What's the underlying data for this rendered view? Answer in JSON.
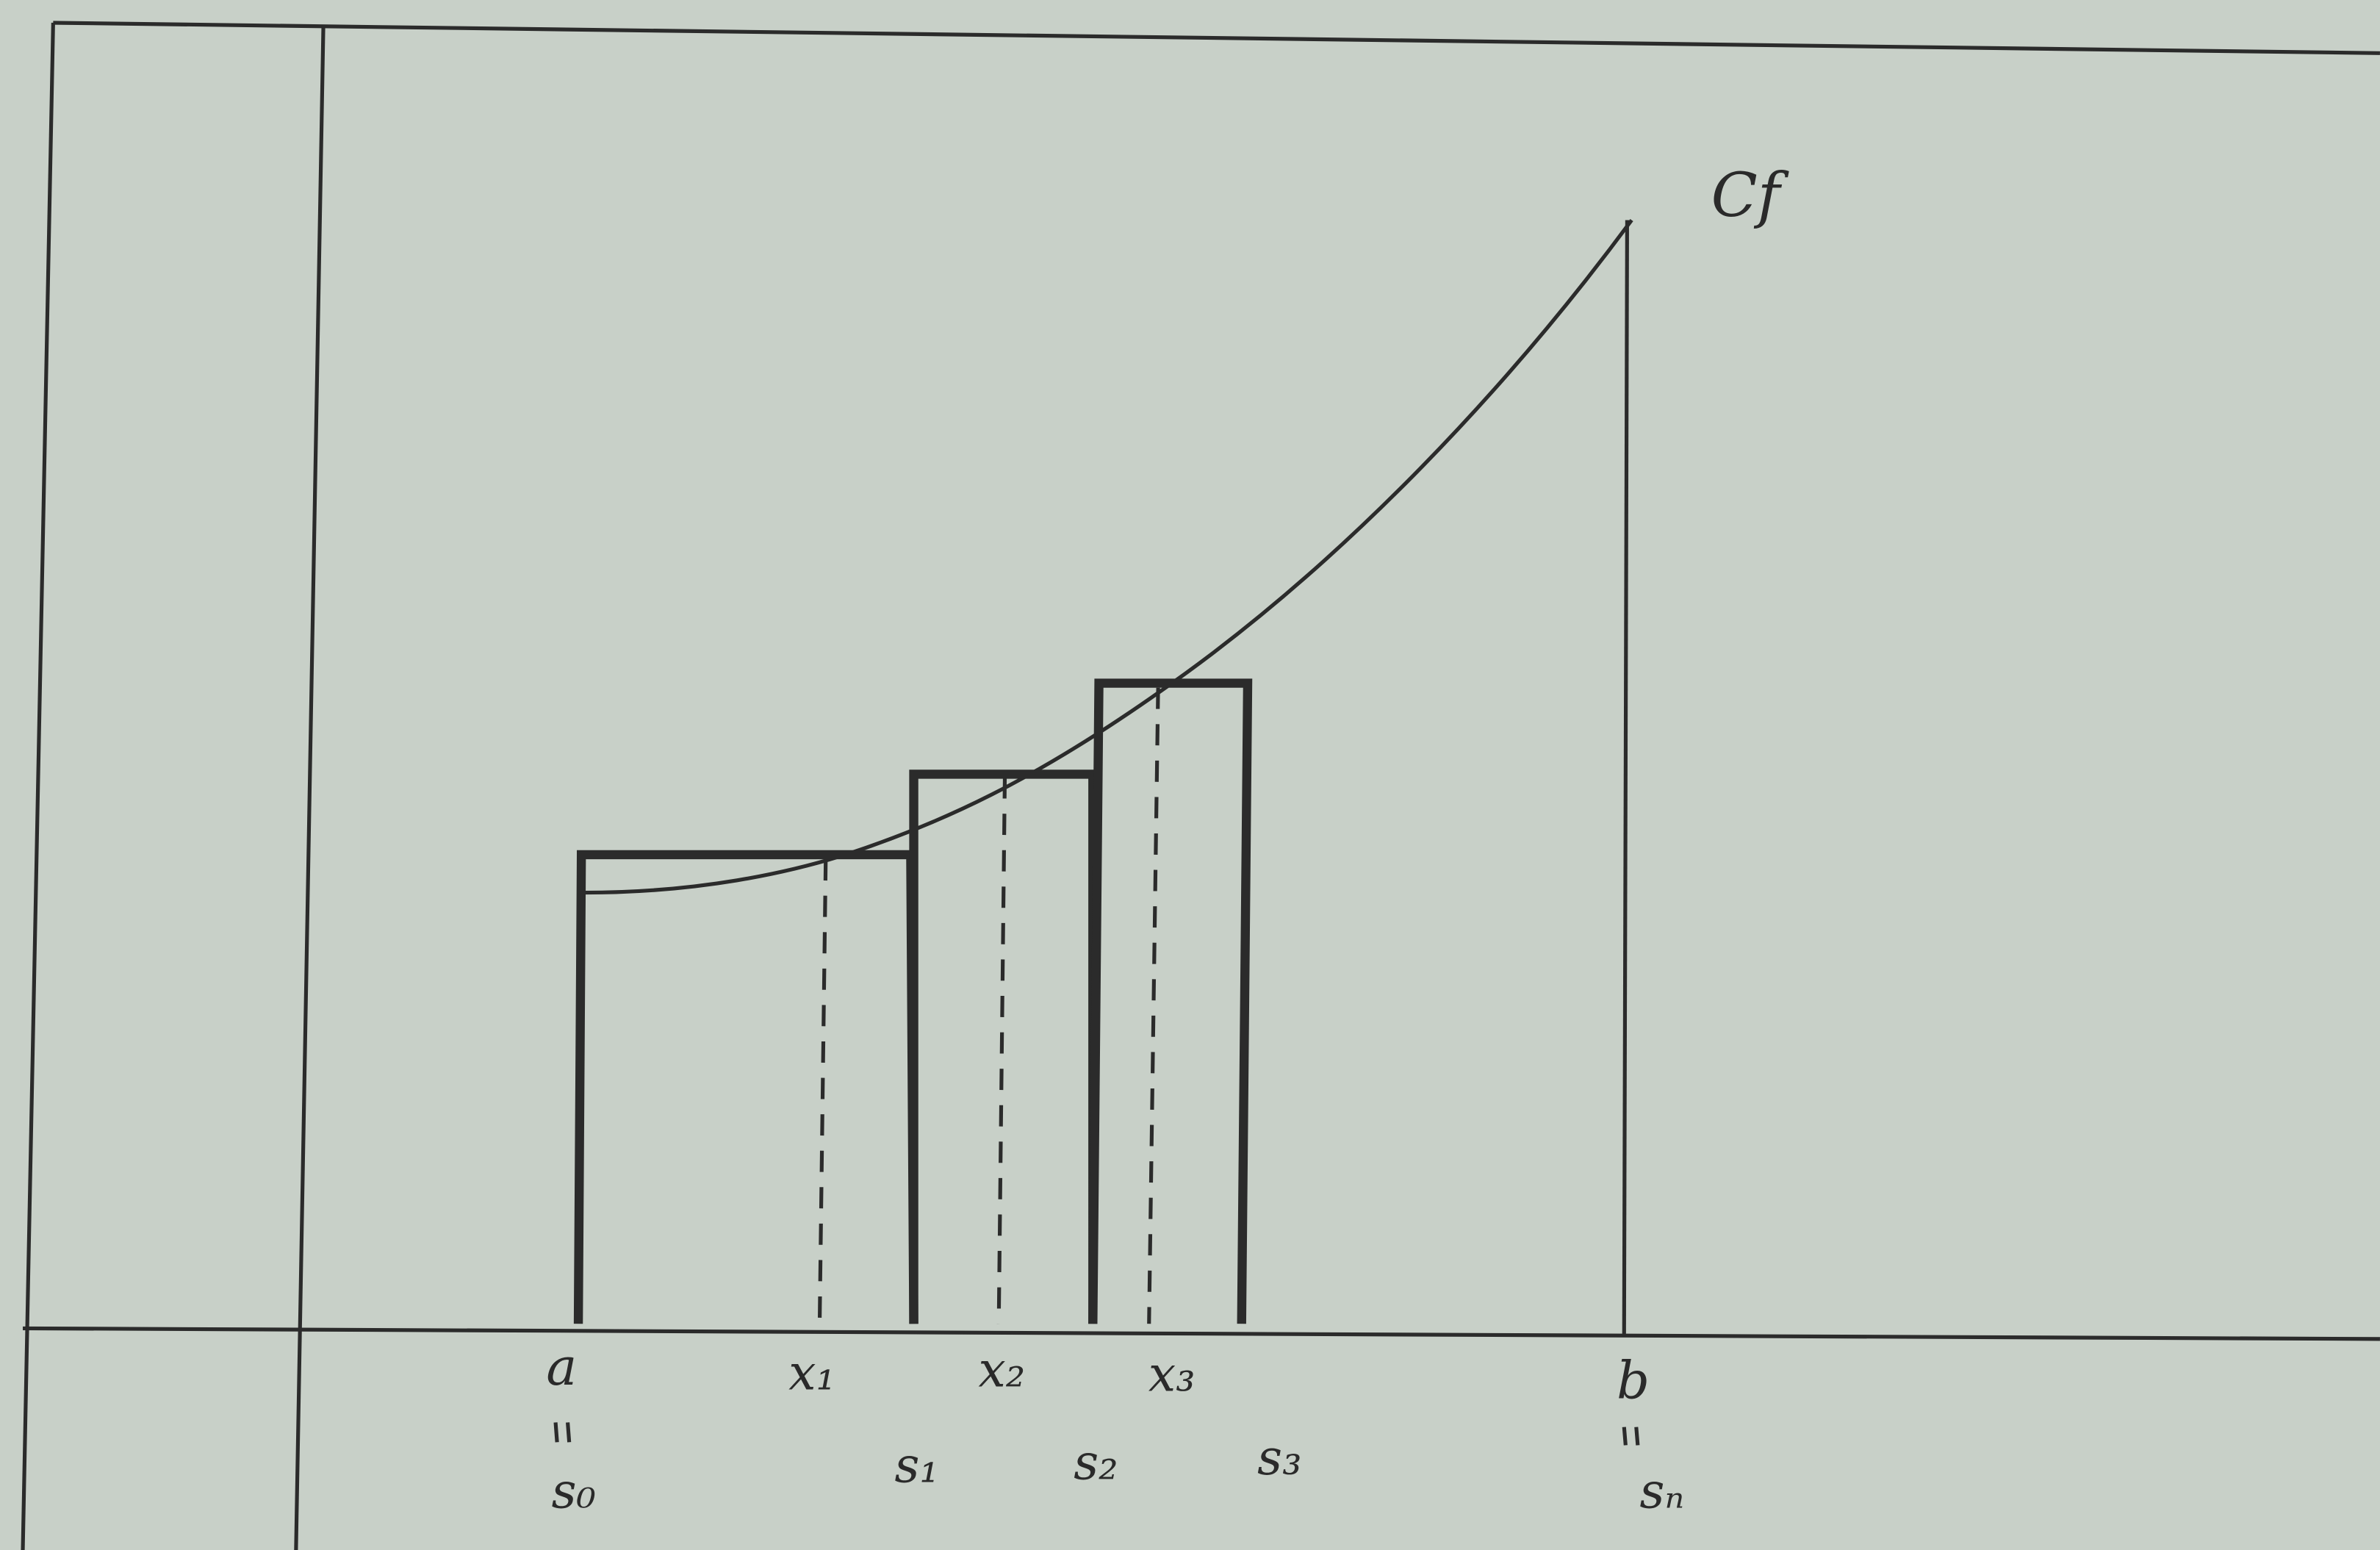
{
  "curve_label": "Cf",
  "axis_labels": {
    "a": "a",
    "b": "b"
  },
  "points": [
    "x₁",
    "x₂",
    "x₃"
  ],
  "subdivision": [
    "s₀",
    "s₁",
    "s₂",
    "s₃",
    "sₙ"
  ]
}
